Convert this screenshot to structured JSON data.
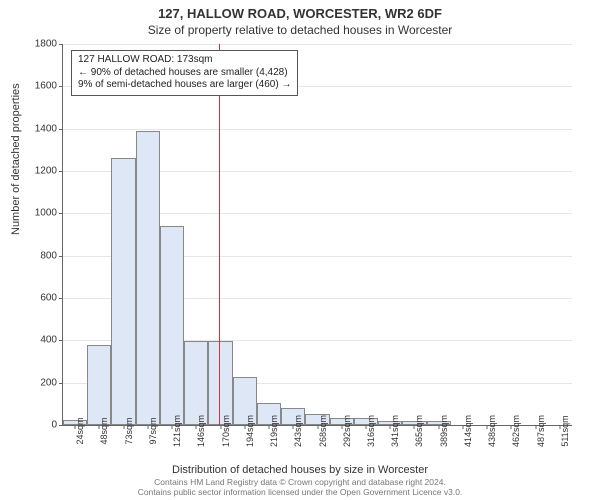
{
  "titles": {
    "main": "127, HALLOW ROAD, WORCESTER, WR2 6DF",
    "sub": "Size of property relative to detached houses in Worcester"
  },
  "axes": {
    "y_title": "Number of detached properties",
    "x_title": "Distribution of detached houses by size in Worcester",
    "y_max": 1800,
    "y_tick_step": 200,
    "y_ticks": [
      0,
      200,
      400,
      600,
      800,
      1000,
      1200,
      1400,
      1600,
      1800
    ],
    "x_labels": [
      "24sqm",
      "48sqm",
      "73sqm",
      "97sqm",
      "121sqm",
      "146sqm",
      "170sqm",
      "194sqm",
      "219sqm",
      "243sqm",
      "268sqm",
      "292sqm",
      "316sqm",
      "341sqm",
      "365sqm",
      "389sqm",
      "414sqm",
      "438sqm",
      "462sqm",
      "487sqm",
      "511sqm"
    ]
  },
  "bars": {
    "values": [
      25,
      380,
      1260,
      1390,
      940,
      395,
      395,
      225,
      105,
      80,
      50,
      35,
      35,
      20,
      20,
      18,
      0,
      0,
      0,
      0,
      0
    ],
    "fill_color": "#dde7f5",
    "border_color": "#888888"
  },
  "highlight": {
    "value_sqm": 173,
    "x_range_min": 24,
    "x_range_max": 511,
    "line_color": "#cc3333"
  },
  "annotation": {
    "line1": "127 HALLOW ROAD: 173sqm",
    "line2": "← 90% of detached houses are smaller (4,428)",
    "line3": "9% of semi-detached houses are larger (460) →"
  },
  "footer": {
    "line1": "Contains HM Land Registry data © Crown copyright and database right 2024.",
    "line2": "Contains public sector information licensed under the Open Government Licence v3.0."
  },
  "style": {
    "plot_bg": "#ffffff",
    "grid_color": "#e6e6e6",
    "title_fontsize": 13,
    "sub_fontsize": 12,
    "axis_label_fontsize": 11,
    "tick_fontsize": 10
  }
}
